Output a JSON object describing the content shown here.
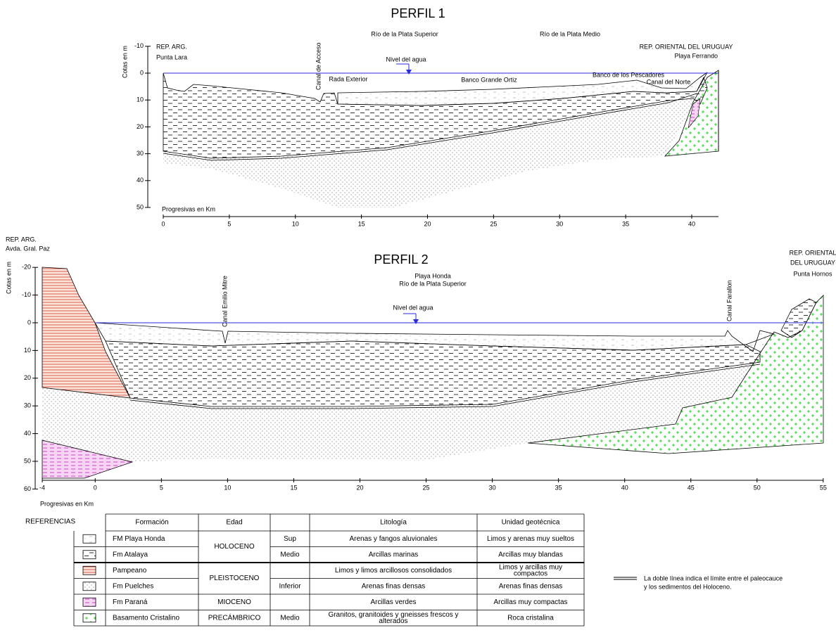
{
  "profiles": [
    {
      "title": "PERFIL 1",
      "y_axis_label": "Cotas en m",
      "x_axis_label": "Progresivas en Km",
      "xticks": [
        0,
        5,
        10,
        15,
        20,
        25,
        30,
        35,
        40
      ],
      "yticks": [
        -10,
        0,
        10,
        20,
        30,
        40,
        50
      ],
      "left_labels": [
        "REP. ARG.",
        "Punta Lara"
      ],
      "right_labels": [
        "REP. ORIENTAL DEL URUGUAY",
        "Playa Ferrando"
      ],
      "regions": [
        "Río de la Plata Superior",
        "Río de la Plata Medio"
      ],
      "water_label": "Nivel del agua",
      "features": [
        "Canal de Acceso",
        "Rada Exterior",
        "Banco Grande Ortiz",
        "Banco de los Pescadores",
        "Canal del Norte"
      ]
    },
    {
      "title": "PERFIL 2",
      "y_axis_label": "Cotas en m",
      "x_axis_label": "Progresivas en Km",
      "xticks": [
        -4,
        0,
        5,
        10,
        15,
        20,
        25,
        30,
        35,
        40,
        45,
        50,
        55
      ],
      "yticks": [
        -20,
        -10,
        0,
        10,
        20,
        30,
        40,
        50,
        60
      ],
      "left_labels": [
        "REP. ARG.",
        "Avda. Gral. Paz"
      ],
      "right_labels": [
        "REP. ORIENTAL",
        "DEL URUGUAY",
        "Punta Hornos"
      ],
      "regions": [
        "Playa Honda",
        "Río de la Plata Superior"
      ],
      "water_label": "Nivel del agua",
      "features": [
        "Canal Emilio Mitre",
        "Canal Farallon"
      ]
    }
  ],
  "references": {
    "title": "REFERENCIAS",
    "header": [
      "Formación",
      "Edad",
      "Litología",
      "Unidad geotécnica"
    ],
    "ages": [
      "HOLOCENO",
      "PLEISTOCENO",
      "MIOCENO",
      "PRECÁMBRICO"
    ],
    "rows": [
      {
        "formation": "FM Playa Honda",
        "stage": "Sup",
        "lithology": [
          "Arenas y fangos aluvionales"
        ],
        "unit": [
          "Limos y arenas muy sueltos"
        ]
      },
      {
        "formation": "Fm Atalaya",
        "stage": "Medio",
        "lithology": [
          "Arcillas marinas"
        ],
        "unit": [
          "Arcillas muy blandas"
        ]
      },
      {
        "formation": "Pampeano",
        "lithology": [
          "Limos y limos arcillosos consolidados"
        ],
        "unit": [
          "Limos y arcillas muy",
          "compactos"
        ]
      },
      {
        "formation": "Fm Puelches",
        "stage": "Inferior",
        "lithology": [
          "Arenas finas densas"
        ],
        "unit": [
          "Arenas finas densas"
        ]
      },
      {
        "formation": "Fm Paraná",
        "lithology": [
          "Arcillas verdes"
        ],
        "unit": [
          "Arcillas muy compactas"
        ]
      },
      {
        "formation": "Basamento Cristalino",
        "stage": "Medio",
        "lithology": [
          "Granitos, granitoides y gneisses frescos y",
          "alterados"
        ],
        "unit": [
          "Roca cristalina"
        ]
      }
    ],
    "note": [
      "La doble línea indica el límite entre el paleocauce",
      "y los sedimentos del Holoceno."
    ]
  }
}
